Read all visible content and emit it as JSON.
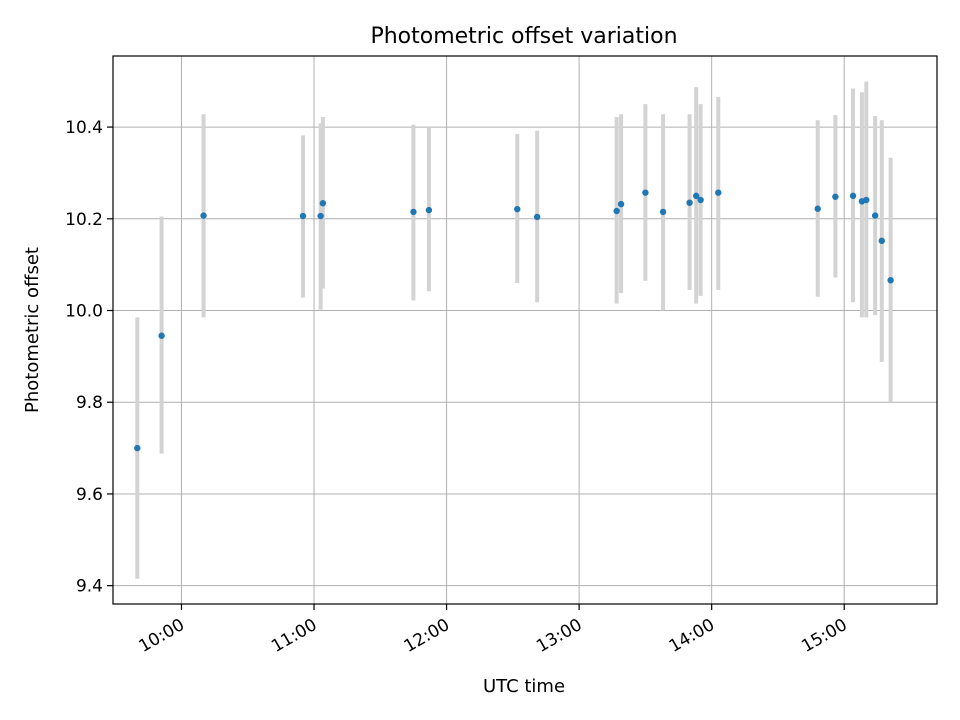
{
  "chart_data": {
    "type": "scatter",
    "title": "Photometric offset variation",
    "xlabel": "UTC time",
    "ylabel": "Photometric offset",
    "x_axis_kind": "time",
    "xlim": [
      "09:29",
      "15:42"
    ],
    "ylim": [
      9.36,
      10.555
    ],
    "grid": true,
    "x_ticks": [
      "10:00",
      "11:00",
      "12:00",
      "13:00",
      "14:00",
      "15:00"
    ],
    "y_ticks": [
      9.4,
      9.6,
      9.8,
      10.0,
      10.2,
      10.4
    ],
    "y_tick_labels": [
      "9.4",
      "9.6",
      "9.8",
      "10.0",
      "10.2",
      "10.4"
    ],
    "colors": {
      "points": "#1f77b4",
      "errorbars": "#d3d3d3",
      "grid": "#b0b0b0"
    },
    "points": [
      {
        "x": "09:40",
        "y": 9.7,
        "yerr_low": 9.415,
        "yerr_high": 9.985
      },
      {
        "x": "09:51",
        "y": 9.945,
        "yerr_low": 9.688,
        "yerr_high": 10.205
      },
      {
        "x": "10:10",
        "y": 10.207,
        "yerr_low": 9.985,
        "yerr_high": 10.428
      },
      {
        "x": "10:55",
        "y": 10.206,
        "yerr_low": 10.028,
        "yerr_high": 10.382
      },
      {
        "x": "11:03",
        "y": 10.206,
        "yerr_low": 10.002,
        "yerr_high": 10.408
      },
      {
        "x": "11:04",
        "y": 10.234,
        "yerr_low": 10.048,
        "yerr_high": 10.422
      },
      {
        "x": "11:45",
        "y": 10.215,
        "yerr_low": 10.022,
        "yerr_high": 10.405
      },
      {
        "x": "11:52",
        "y": 10.219,
        "yerr_low": 10.042,
        "yerr_high": 10.4
      },
      {
        "x": "12:32",
        "y": 10.221,
        "yerr_low": 10.06,
        "yerr_high": 10.385
      },
      {
        "x": "12:41",
        "y": 10.204,
        "yerr_low": 10.018,
        "yerr_high": 10.392
      },
      {
        "x": "13:17",
        "y": 10.217,
        "yerr_low": 10.015,
        "yerr_high": 10.422
      },
      {
        "x": "13:19",
        "y": 10.232,
        "yerr_low": 10.038,
        "yerr_high": 10.428
      },
      {
        "x": "13:30",
        "y": 10.257,
        "yerr_low": 10.065,
        "yerr_high": 10.45
      },
      {
        "x": "13:38",
        "y": 10.215,
        "yerr_low": 10.0,
        "yerr_high": 10.428
      },
      {
        "x": "13:50",
        "y": 10.235,
        "yerr_low": 10.045,
        "yerr_high": 10.428
      },
      {
        "x": "13:53",
        "y": 10.25,
        "yerr_low": 10.015,
        "yerr_high": 10.487
      },
      {
        "x": "13:55",
        "y": 10.241,
        "yerr_low": 10.032,
        "yerr_high": 10.45
      },
      {
        "x": "14:03",
        "y": 10.257,
        "yerr_low": 10.045,
        "yerr_high": 10.466
      },
      {
        "x": "14:48",
        "y": 10.222,
        "yerr_low": 10.03,
        "yerr_high": 10.415
      },
      {
        "x": "14:56",
        "y": 10.248,
        "yerr_low": 10.072,
        "yerr_high": 10.426
      },
      {
        "x": "15:04",
        "y": 10.25,
        "yerr_low": 10.018,
        "yerr_high": 10.484
      },
      {
        "x": "15:08",
        "y": 10.238,
        "yerr_low": 9.985,
        "yerr_high": 10.476
      },
      {
        "x": "15:10",
        "y": 10.241,
        "yerr_low": 9.985,
        "yerr_high": 10.499
      },
      {
        "x": "15:14",
        "y": 10.207,
        "yerr_low": 9.99,
        "yerr_high": 10.424
      },
      {
        "x": "15:17",
        "y": 10.152,
        "yerr_low": 9.888,
        "yerr_high": 10.415
      },
      {
        "x": "15:21",
        "y": 10.066,
        "yerr_low": 9.8,
        "yerr_high": 10.333
      }
    ]
  }
}
